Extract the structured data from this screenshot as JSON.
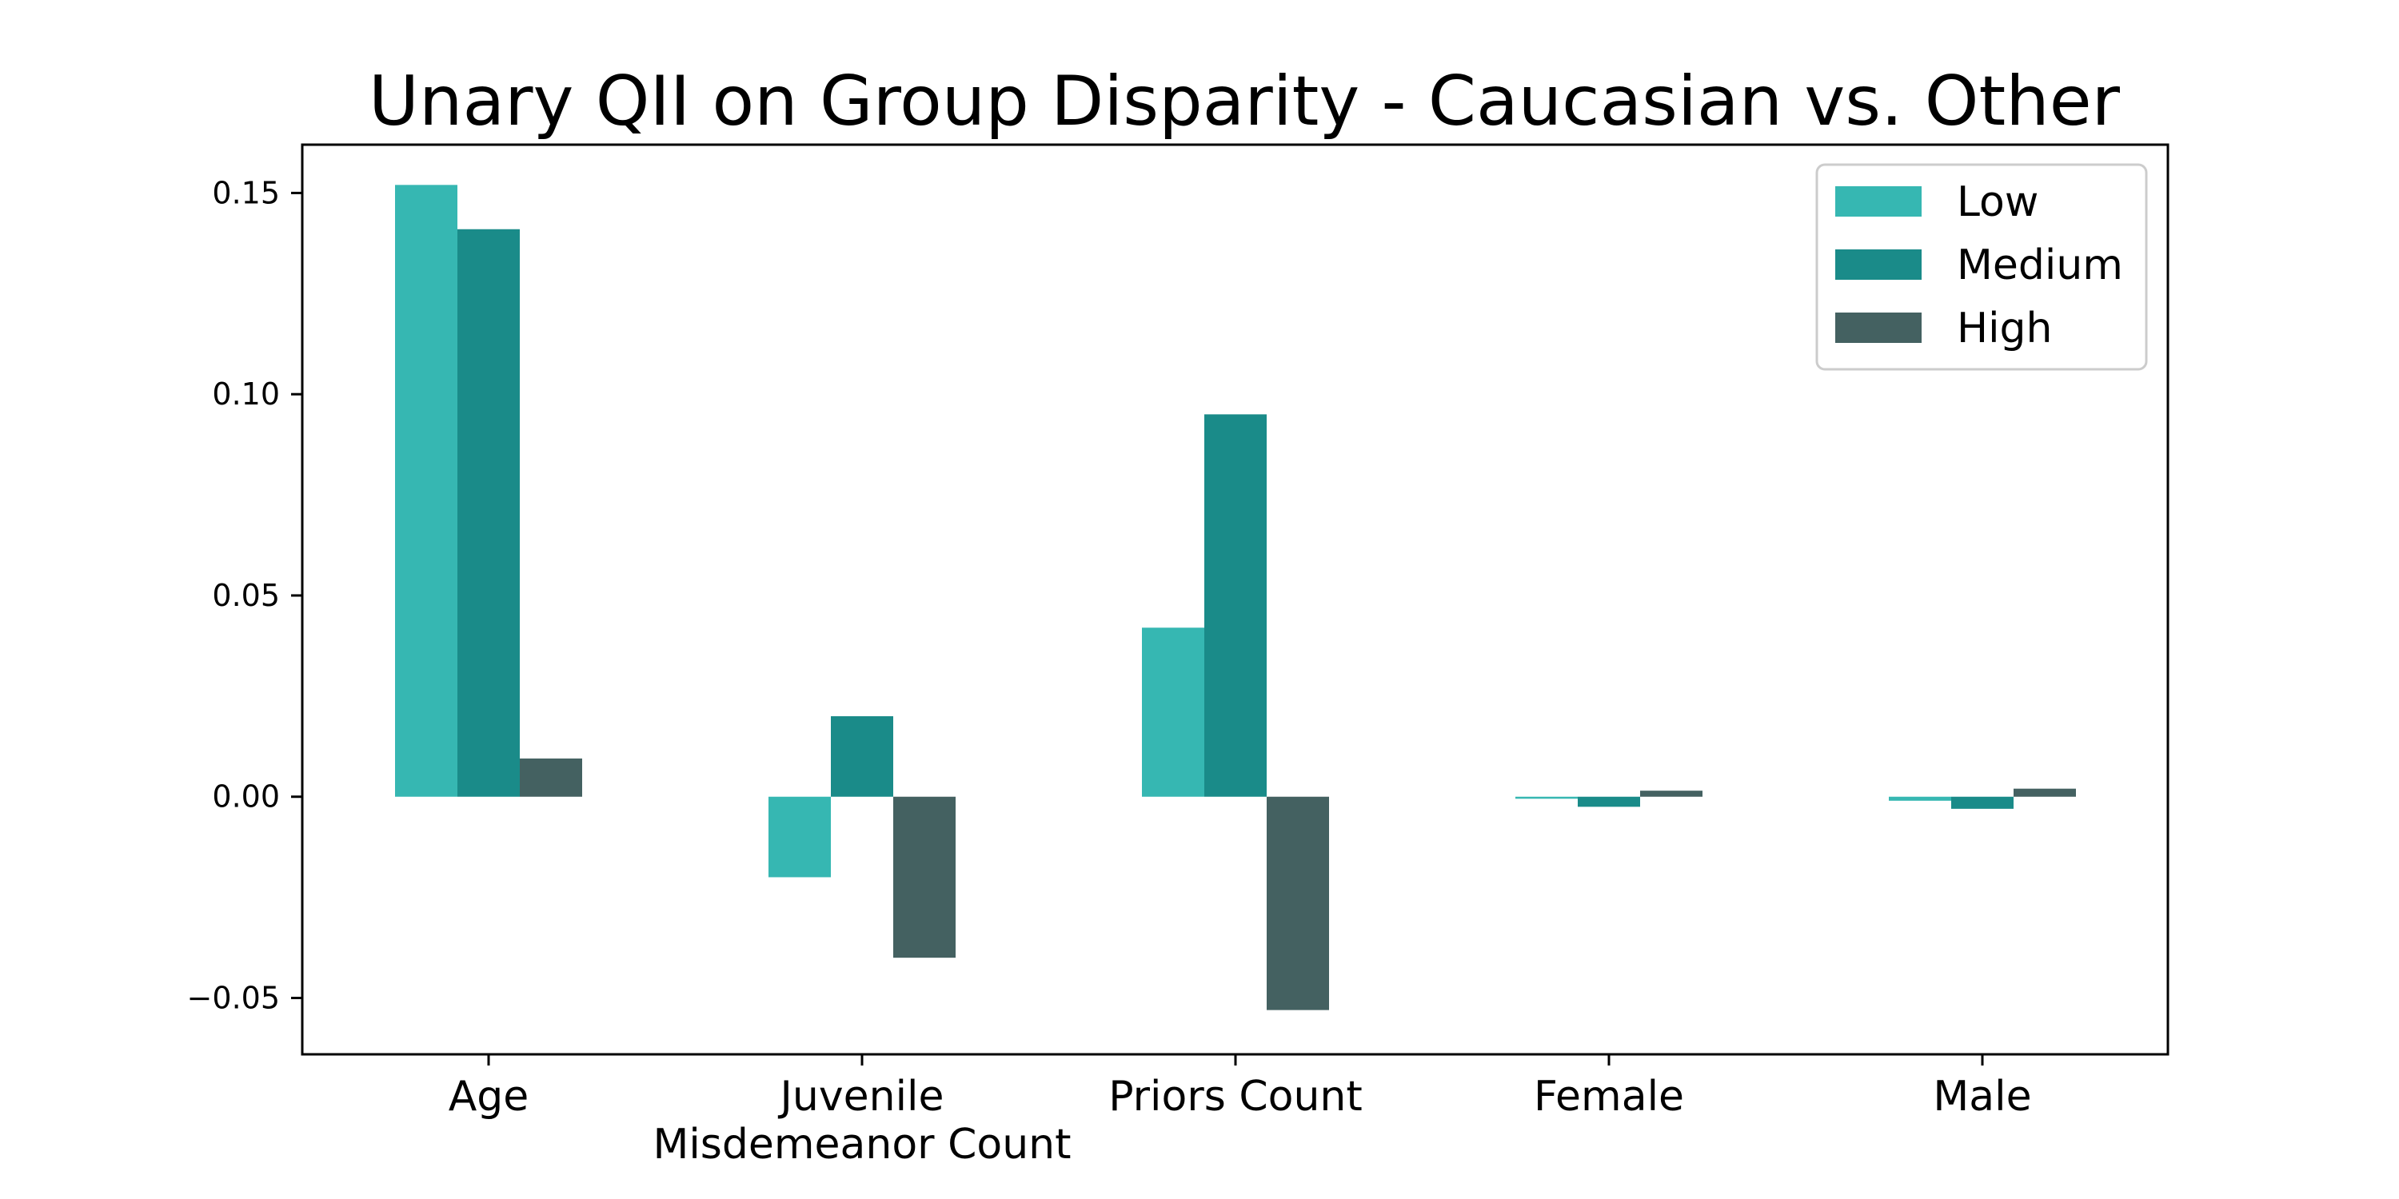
{
  "chart_data": {
    "type": "bar",
    "title": "Unary QII on Group Disparity - Caucasian vs. Other",
    "xlabel": "",
    "ylabel": "",
    "categories": [
      [
        "Age"
      ],
      [
        "Juvenile",
        "Misdemeanor Count"
      ],
      [
        "Priors Count"
      ],
      [
        "Female"
      ],
      [
        "Male"
      ]
    ],
    "series": [
      {
        "name": "Low",
        "color": "#36b7b2",
        "values": [
          0.152,
          -0.02,
          0.042,
          -0.0005,
          -0.001
        ]
      },
      {
        "name": "Medium",
        "color": "#1a8b89",
        "values": [
          0.141,
          0.02,
          0.095,
          -0.0025,
          -0.003
        ]
      },
      {
        "name": "High",
        "color": "#446161",
        "values": [
          0.0095,
          -0.04,
          -0.053,
          0.0015,
          0.002
        ]
      }
    ],
    "ylim": [
      -0.064,
      0.162
    ],
    "yticks": [
      "0.15",
      "0.10",
      "0.05",
      "0.00",
      "−0.05"
    ],
    "ytick_values": [
      0.15,
      0.1,
      0.05,
      0.0,
      -0.05
    ],
    "grid": false,
    "legend_position": "top-right"
  }
}
